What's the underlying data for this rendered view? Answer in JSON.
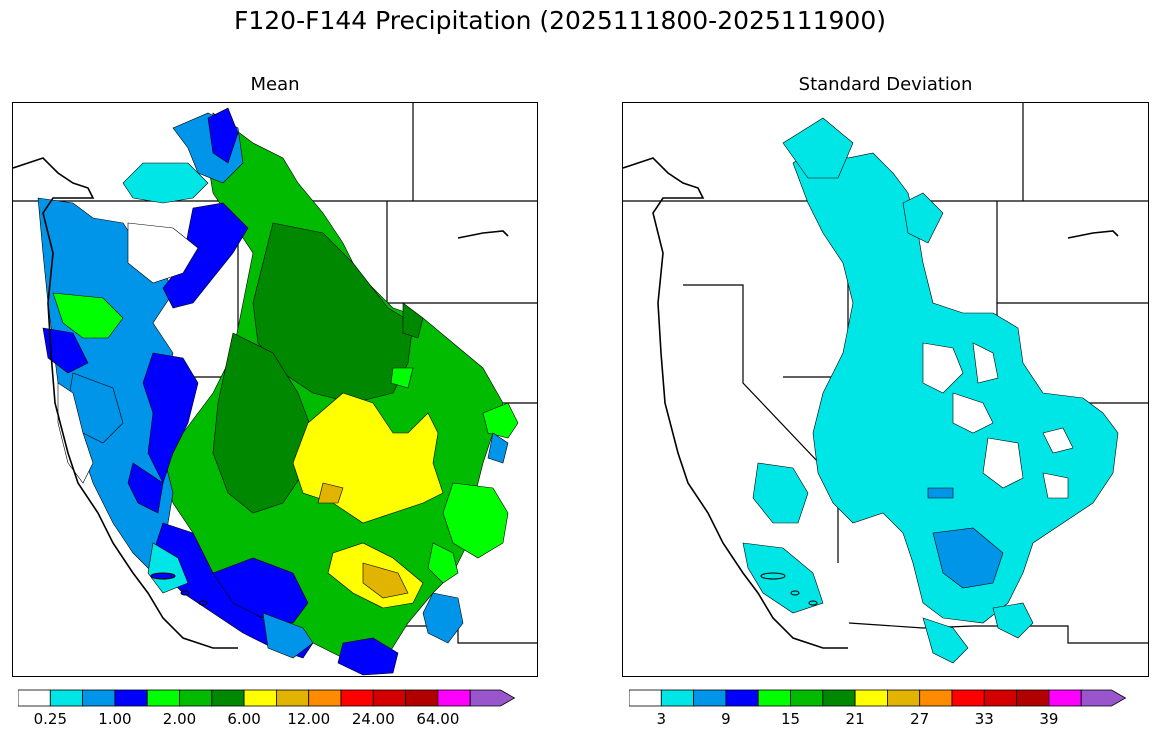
{
  "title": "F120-F144 Precipitation (2025111800-2025111900)",
  "panels": [
    {
      "title": "Mean"
    },
    {
      "title": "Standard Deviation"
    }
  ],
  "colorbar": {
    "colors": [
      "#ffffff",
      "#00e5e5",
      "#0095e8",
      "#0000ff",
      "#00ff00",
      "#00bb00",
      "#008800",
      "#ffff00",
      "#e0b400",
      "#ff8c00",
      "#ff0000",
      "#d40000",
      "#b20000",
      "#ff00ff",
      "#9955cc"
    ],
    "mean_ticks": [
      "0.25",
      "1.00",
      "2.00",
      "6.00",
      "12.00",
      "24.00",
      "64.00"
    ],
    "sd_ticks": [
      "3",
      "9",
      "15",
      "21",
      "27",
      "33",
      "39"
    ]
  }
}
